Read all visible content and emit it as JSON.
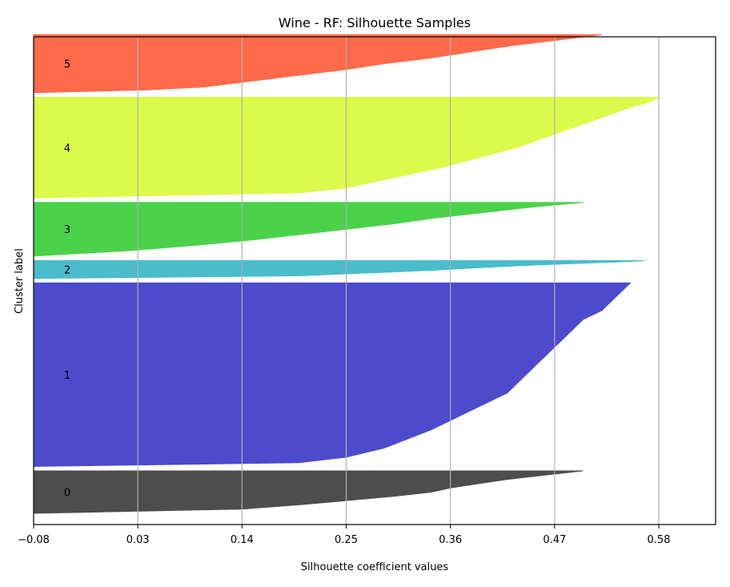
{
  "chart_data": {
    "type": "area",
    "title": "Wine - RF: Silhouette Samples",
    "xlabel": "Silhouette coefficient values",
    "ylabel": "Cluster label",
    "xlim": [
      -0.08,
      0.64
    ],
    "xticks": [
      -0.08,
      0.03,
      0.14,
      0.25,
      0.36,
      0.47,
      0.58
    ],
    "xtick_labels": [
      "−0.08",
      "0.03",
      "0.14",
      "0.25",
      "0.36",
      "0.47",
      "0.58"
    ],
    "grid": "x",
    "ylim": [
      0,
      218
    ],
    "clusters": [
      {
        "label": "0",
        "color": "#4d4d4d",
        "y_start": 5,
        "y_end": 24,
        "profile": [
          [
            0,
            -0.08
          ],
          [
            0.1,
            0.14
          ],
          [
            0.2,
            0.2
          ],
          [
            0.3,
            0.25
          ],
          [
            0.4,
            0.3
          ],
          [
            0.5,
            0.34
          ],
          [
            0.6,
            0.36
          ],
          [
            0.7,
            0.39
          ],
          [
            0.8,
            0.42
          ],
          [
            0.9,
            0.46
          ],
          [
            1,
            0.5
          ]
        ]
      },
      {
        "label": "1",
        "color": "#4b4bcc",
        "y_start": 26,
        "y_end": 108,
        "profile": [
          [
            0,
            -0.08
          ],
          [
            0.02,
            0.2
          ],
          [
            0.05,
            0.25
          ],
          [
            0.1,
            0.29
          ],
          [
            0.2,
            0.34
          ],
          [
            0.3,
            0.38
          ],
          [
            0.4,
            0.42
          ],
          [
            0.5,
            0.44
          ],
          [
            0.6,
            0.46
          ],
          [
            0.7,
            0.48
          ],
          [
            0.75,
            0.49
          ],
          [
            0.8,
            0.5
          ],
          [
            0.85,
            0.52
          ],
          [
            0.9,
            0.53
          ],
          [
            0.95,
            0.54
          ],
          [
            1,
            0.55
          ]
        ]
      },
      {
        "label": "2",
        "color": "#4bbccc",
        "y_start": 110,
        "y_end": 118,
        "profile": [
          [
            0,
            -0.08
          ],
          [
            0.15,
            0.2
          ],
          [
            0.3,
            0.27
          ],
          [
            0.45,
            0.34
          ],
          [
            0.6,
            0.39
          ],
          [
            0.75,
            0.45
          ],
          [
            0.85,
            0.5
          ],
          [
            0.95,
            0.55
          ],
          [
            1,
            0.565
          ]
        ]
      },
      {
        "label": "3",
        "color": "#4bd24b",
        "y_start": 120,
        "y_end": 144,
        "profile": [
          [
            0,
            -0.08
          ],
          [
            0.1,
            0.02
          ],
          [
            0.2,
            0.09
          ],
          [
            0.3,
            0.15
          ],
          [
            0.4,
            0.2
          ],
          [
            0.5,
            0.25
          ],
          [
            0.6,
            0.3
          ],
          [
            0.7,
            0.34
          ],
          [
            0.8,
            0.39
          ],
          [
            0.9,
            0.44
          ],
          [
            1,
            0.5
          ]
        ]
      },
      {
        "label": "4",
        "color": "#dcfa4b",
        "y_start": 146,
        "y_end": 191,
        "profile": [
          [
            0,
            -0.08
          ],
          [
            0.05,
            0.2
          ],
          [
            0.1,
            0.25
          ],
          [
            0.2,
            0.3
          ],
          [
            0.3,
            0.35
          ],
          [
            0.4,
            0.39
          ],
          [
            0.5,
            0.43
          ],
          [
            0.6,
            0.46
          ],
          [
            0.7,
            0.49
          ],
          [
            0.8,
            0.52
          ],
          [
            0.9,
            0.55
          ],
          [
            0.95,
            0.57
          ],
          [
            1,
            0.58
          ]
        ]
      },
      {
        "label": "5",
        "color": "#ff6a4b",
        "y_start": 193,
        "y_end": 219,
        "profile": [
          [
            0,
            -0.08
          ],
          [
            0.05,
            0.04
          ],
          [
            0.1,
            0.1
          ],
          [
            0.2,
            0.15
          ],
          [
            0.3,
            0.2
          ],
          [
            0.4,
            0.25
          ],
          [
            0.5,
            0.29
          ],
          [
            0.6,
            0.34
          ],
          [
            0.7,
            0.38
          ],
          [
            0.8,
            0.42
          ],
          [
            0.9,
            0.47
          ],
          [
            1,
            0.52
          ]
        ]
      }
    ]
  }
}
